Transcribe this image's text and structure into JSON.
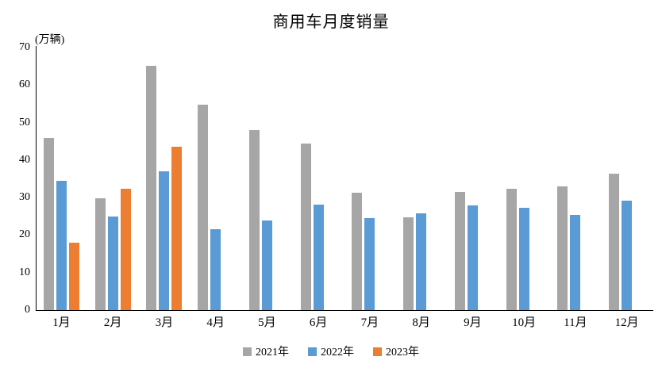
{
  "title": "商用车月度销量",
  "unit_label": "(万辆)",
  "chart_data": {
    "type": "bar",
    "title": "商用车月度销量",
    "ylabel": "(万辆)",
    "xlabel": "",
    "categories": [
      "1月",
      "2月",
      "3月",
      "4月",
      "5月",
      "6月",
      "7月",
      "8月",
      "9月",
      "10月",
      "11月",
      "12月"
    ],
    "series": [
      {
        "name": "2021年",
        "color": "#A6A6A6",
        "values": [
          45.9,
          29.8,
          65.2,
          54.8,
          48.0,
          44.5,
          31.2,
          24.7,
          31.6,
          32.4,
          32.9,
          36.4
        ]
      },
      {
        "name": "2022年",
        "color": "#5B9BD5",
        "values": [
          34.5,
          25.0,
          37.0,
          21.6,
          23.9,
          28.1,
          24.5,
          25.8,
          28.0,
          27.2,
          25.4,
          29.2
        ]
      },
      {
        "name": "2023年",
        "color": "#ED7D31",
        "values": [
          18.0,
          32.3,
          43.5,
          null,
          null,
          null,
          null,
          null,
          null,
          null,
          null,
          null
        ]
      }
    ],
    "ylim": [
      0,
      70
    ],
    "yticks": [
      0,
      10,
      20,
      30,
      40,
      50,
      60,
      70
    ],
    "grid": false,
    "legend_position": "bottom",
    "axis_color": "#000000",
    "background_color": "#FFFFFF"
  }
}
